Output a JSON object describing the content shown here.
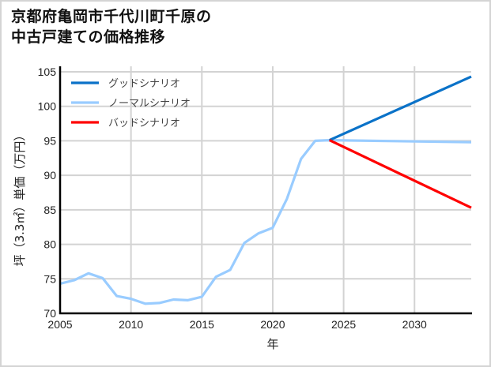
{
  "title": {
    "line1": "京都府亀岡市千代川町千原の",
    "line2": "中古戸建ての価格推移"
  },
  "colors": {
    "good": "#0a72c8",
    "normal": "#99ccff",
    "bad": "#ff0000",
    "grid": "#d3d3d3",
    "axis": "#000000",
    "frame": "#d4d4d4"
  },
  "chart_data": {
    "type": "line",
    "title": "京都府亀岡市千代川町千原の中古戸建ての価格推移",
    "xlabel": "年",
    "ylabel": "坪（3.3㎡）単価（万円）",
    "xlim": [
      2005,
      2034
    ],
    "ylim": [
      70,
      105
    ],
    "xticks": [
      2005,
      2010,
      2015,
      2020,
      2025,
      2030
    ],
    "yticks": [
      70,
      75,
      80,
      85,
      90,
      95,
      100,
      105
    ],
    "grid": true,
    "legend_position": "upper left",
    "series": [
      {
        "name": "グッドシナリオ",
        "color": "#0a72c8",
        "x": [
          2024,
          2034
        ],
        "y": [
          95.1,
          104.3
        ]
      },
      {
        "name": "ノーマルシナリオ",
        "color": "#99ccff",
        "x": [
          2005,
          2006,
          2007,
          2008,
          2009,
          2010,
          2011,
          2012,
          2013,
          2014,
          2015,
          2016,
          2017,
          2018,
          2019,
          2020,
          2021,
          2022,
          2023,
          2024,
          2034
        ],
        "y": [
          74.3,
          74.8,
          75.8,
          75.1,
          72.5,
          72.1,
          71.4,
          71.5,
          72.0,
          71.9,
          72.4,
          75.3,
          76.3,
          80.2,
          81.6,
          82.4,
          86.6,
          92.4,
          95.0,
          95.1,
          94.8
        ]
      },
      {
        "name": "バッドシナリオ",
        "color": "#ff0000",
        "x": [
          2024,
          2034
        ],
        "y": [
          95.1,
          85.3
        ]
      }
    ]
  }
}
